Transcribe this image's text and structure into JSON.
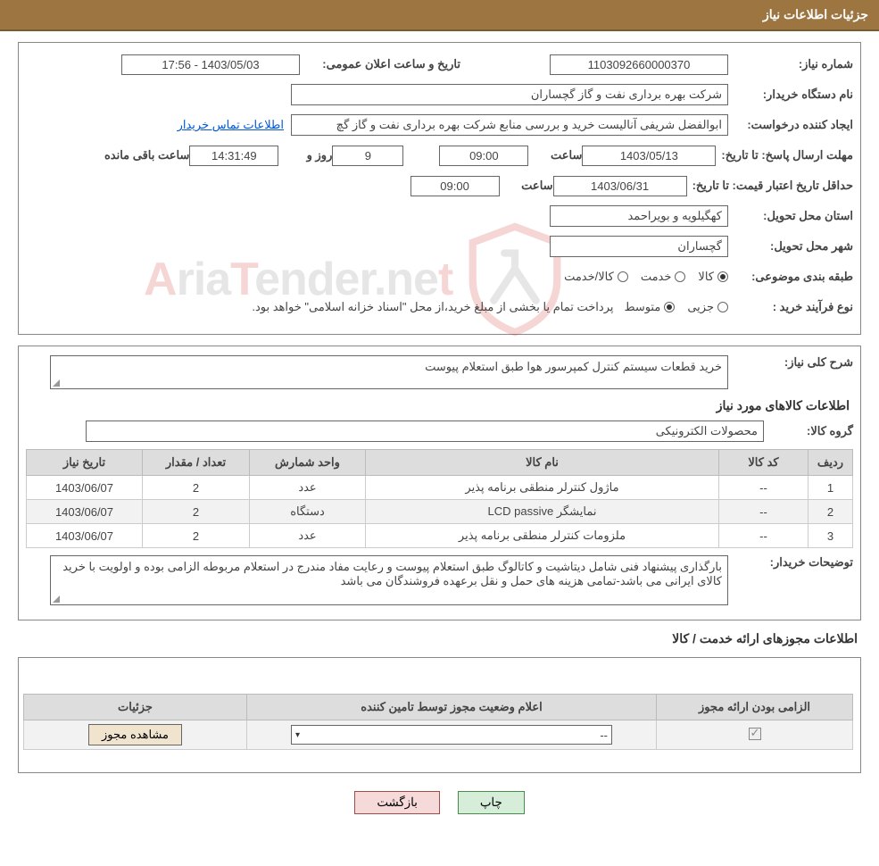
{
  "header": {
    "title": "جزئیات اطلاعات نیاز"
  },
  "fields": {
    "need_no_label": "شماره نیاز:",
    "need_no": "1103092660000370",
    "announce_label": "تاریخ و ساعت اعلان عمومی:",
    "announce_value": "1403/05/03 - 17:56",
    "buyer_org_label": "نام دستگاه خریدار:",
    "buyer_org": "شرکت بهره برداری نفت و گاز گچساران",
    "requester_label": "ایجاد کننده درخواست:",
    "requester": "ابوالفضل شریفی آنالیست خرید و بررسی منابع شرکت بهره برداری نفت و گاز گچ",
    "contact_link": "اطلاعات تماس خریدار",
    "deadline_label": "مهلت ارسال پاسخ: تا تاریخ:",
    "deadline_date": "1403/05/13",
    "time_label": "ساعت",
    "deadline_time": "09:00",
    "days_remaining": "9",
    "days_label": "روز و",
    "countdown": "14:31:49",
    "remaining_label": "ساعت باقی مانده",
    "validity_label": "حداقل تاریخ اعتبار قیمت: تا تاریخ:",
    "validity_date": "1403/06/31",
    "validity_time": "09:00",
    "province_label": "استان محل تحویل:",
    "province": "کهگیلویه و بویراحمد",
    "city_label": "شهر محل تحویل:",
    "city": "گچساران",
    "category_label": "طبقه بندی موضوعی:",
    "cat_goods": "کالا",
    "cat_service": "خدمت",
    "cat_goods_service": "کالا/خدمت",
    "purchase_type_label": "نوع فرآیند خرید :",
    "pt_minor": "جزیی",
    "pt_medium": "متوسط",
    "payment_note": "پرداخت تمام یا بخشی از مبلغ خرید،از محل \"اسناد خزانه اسلامی\" خواهد بود."
  },
  "desc": {
    "overall_label": "شرح کلی نیاز:",
    "overall_text": "خرید قطعات سیستم کنترل کمپرسور هوا طبق استعلام پیوست",
    "items_title": "اطلاعات کالاهای مورد نیاز",
    "group_label": "گروه کالا:",
    "group_value": "محصولات الکترونیکی",
    "buyer_notes_label": "توضیحات خریدار:",
    "buyer_notes": "بارگذاری پیشنهاد فنی شامل دیتاشیت و کاتالوگ طبق استعلام پیوست و رعایت مفاد مندرج در استعلام مربوطه الزامی بوده و اولویت با خرید کالای ایرانی می باشد-تمامی هزینه های حمل و نقل برعهده فروشندگان می باشد"
  },
  "items_table": {
    "headers": {
      "row": "ردیف",
      "code": "کد کالا",
      "name": "نام کالا",
      "unit": "واحد شمارش",
      "qty": "تعداد / مقدار",
      "date": "تاریخ نیاز"
    },
    "rows": [
      {
        "row": "1",
        "code": "--",
        "name": "ماژول کنترلر منطقی برنامه پذیر",
        "unit": "عدد",
        "qty": "2",
        "date": "1403/06/07"
      },
      {
        "row": "2",
        "code": "--",
        "name": "نمایشگر LCD passive",
        "unit": "دستگاه",
        "qty": "2",
        "date": "1403/06/07"
      },
      {
        "row": "3",
        "code": "--",
        "name": "ملزومات کنترلر منطقی برنامه پذیر",
        "unit": "عدد",
        "qty": "2",
        "date": "1403/06/07"
      }
    ]
  },
  "permits": {
    "title": "اطلاعات مجوزهای ارائه خدمت / کالا",
    "headers": {
      "mandatory": "الزامی بودن ارائه مجوز",
      "status": "اعلام وضعیت مجوز توسط تامین کننده",
      "details": "جزئیات"
    },
    "status_placeholder": "--",
    "view_btn": "مشاهده مجوز"
  },
  "actions": {
    "print": "چاپ",
    "back": "بازگشت"
  },
  "colors": {
    "header_bg": "#9c7541",
    "border": "#888888",
    "th_bg": "#dddddd",
    "link": "#0057d8",
    "btn_print_bg": "#d6eed9",
    "btn_back_bg": "#f6dada",
    "wm_red": "#d11f1f"
  }
}
